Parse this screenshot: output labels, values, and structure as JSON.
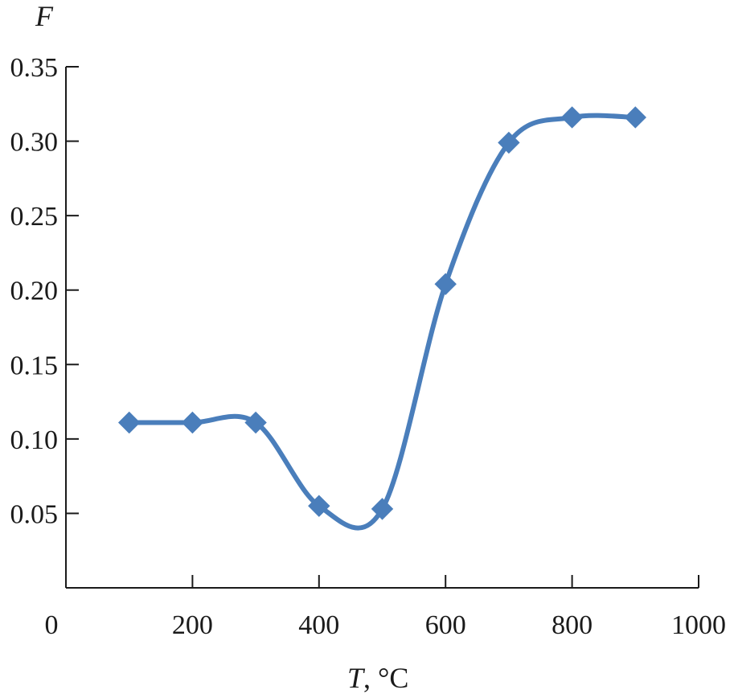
{
  "chart_data": {
    "type": "line",
    "xlabel_var": "T",
    "xlabel_unit": ", °C",
    "ylabel": "F",
    "x_ticks": [
      "0",
      "200",
      "400",
      "600",
      "800",
      "1000"
    ],
    "y_ticks": [
      "0.05",
      "0.10",
      "0.15",
      "0.20",
      "0.25",
      "0.30",
      "0.35"
    ],
    "xlim": [
      0,
      1000
    ],
    "ylim": [
      0,
      0.35
    ],
    "grid": false,
    "series": [
      {
        "x": [
          100,
          200,
          300,
          400,
          500,
          600,
          700,
          800,
          900
        ],
        "y": [
          0.111,
          0.111,
          0.111,
          0.055,
          0.053,
          0.204,
          0.299,
          0.316,
          0.316
        ],
        "color": "#4a7ebb",
        "marker": "diamond",
        "smooth": true
      }
    ]
  }
}
